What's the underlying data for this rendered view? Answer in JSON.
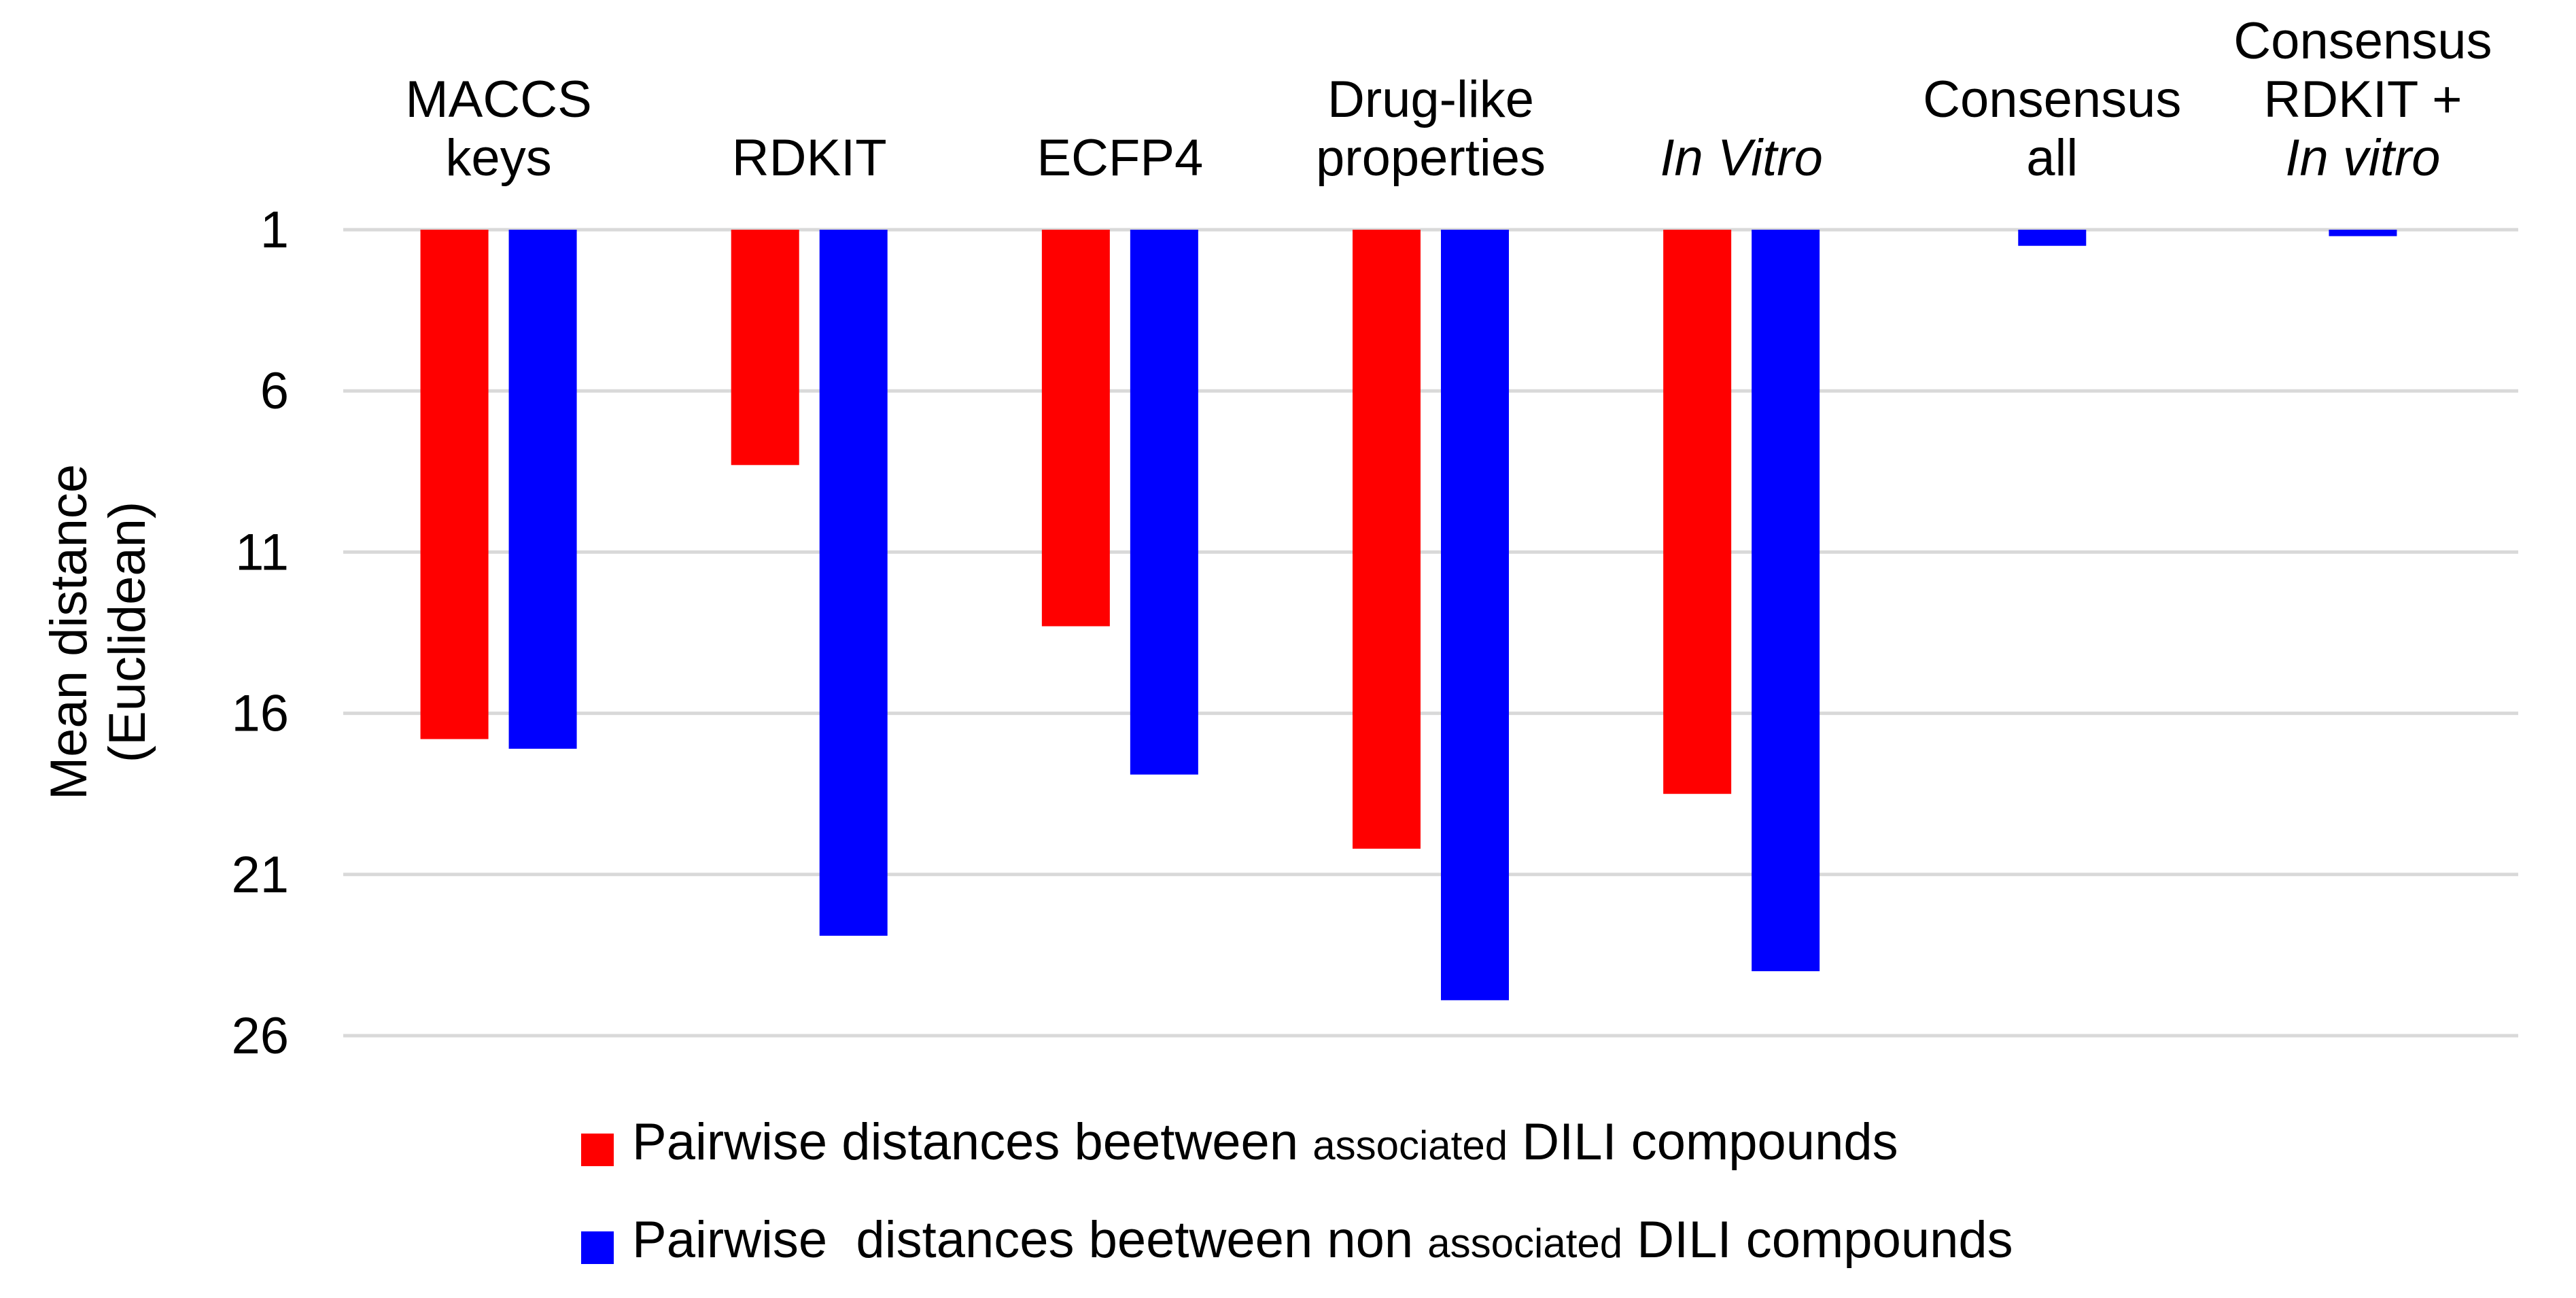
{
  "chart_data": {
    "type": "bar",
    "orientation": "vertical-inverted",
    "title": "",
    "xlabel": "",
    "ylabel": [
      "Mean distance",
      "(Euclidean)"
    ],
    "y_reversed": true,
    "x_axis_position": "top",
    "ylim": [
      1,
      26
    ],
    "yticks": [
      "1",
      "6",
      "11",
      "16",
      "21",
      "26"
    ],
    "grid": true,
    "legend_position": "bottom",
    "categories": [
      {
        "lines": [
          {
            "parts": [
              {
                "text": "MACCS",
                "italic": false
              }
            ]
          },
          {
            "parts": [
              {
                "text": "keys",
                "italic": false
              }
            ]
          }
        ]
      },
      {
        "lines": [
          {
            "parts": [
              {
                "text": "RDKIT",
                "italic": false
              }
            ]
          }
        ]
      },
      {
        "lines": [
          {
            "parts": [
              {
                "text": "ECFP4",
                "italic": false
              }
            ]
          }
        ]
      },
      {
        "lines": [
          {
            "parts": [
              {
                "text": "Drug-like",
                "italic": false
              }
            ]
          },
          {
            "parts": [
              {
                "text": "properties",
                "italic": false
              }
            ]
          }
        ]
      },
      {
        "lines": [
          {
            "parts": [
              {
                "text": "In Vitro",
                "italic": true
              }
            ]
          }
        ]
      },
      {
        "lines": [
          {
            "parts": [
              {
                "text": "Consensus",
                "italic": false
              }
            ]
          },
          {
            "parts": [
              {
                "text": "all",
                "italic": false
              }
            ]
          }
        ]
      },
      {
        "lines": [
          {
            "parts": [
              {
                "text": "Consensus",
                "italic": false
              }
            ]
          },
          {
            "parts": [
              {
                "text": "RDKIT +",
                "italic": false
              }
            ]
          },
          {
            "parts": [
              {
                "text": "In vitro",
                "italic": true
              }
            ]
          }
        ]
      }
    ],
    "series": [
      {
        "name": "Pairwise distances beetween associated DILI compounds",
        "legend_parts": [
          {
            "text": "Pairwise distances beetween ",
            "small": false
          },
          {
            "text": "associated",
            "small": true
          },
          {
            "text": " DILI compounds",
            "small": false
          }
        ],
        "color": "#ff0000",
        "values": [
          16.8,
          8.3,
          13.3,
          20.2,
          18.5,
          null,
          null
        ]
      },
      {
        "name": "Pairwise  distances beetween non associated DILI compounds",
        "legend_parts": [
          {
            "text": "Pairwise  distances beetween non ",
            "small": false
          },
          {
            "text": "associated",
            "small": true
          },
          {
            "text": " DILI compounds",
            "small": false
          }
        ],
        "color": "#0000ff",
        "values": [
          17.1,
          22.9,
          17.9,
          24.9,
          24.0,
          1.5,
          1.2
        ]
      }
    ]
  }
}
